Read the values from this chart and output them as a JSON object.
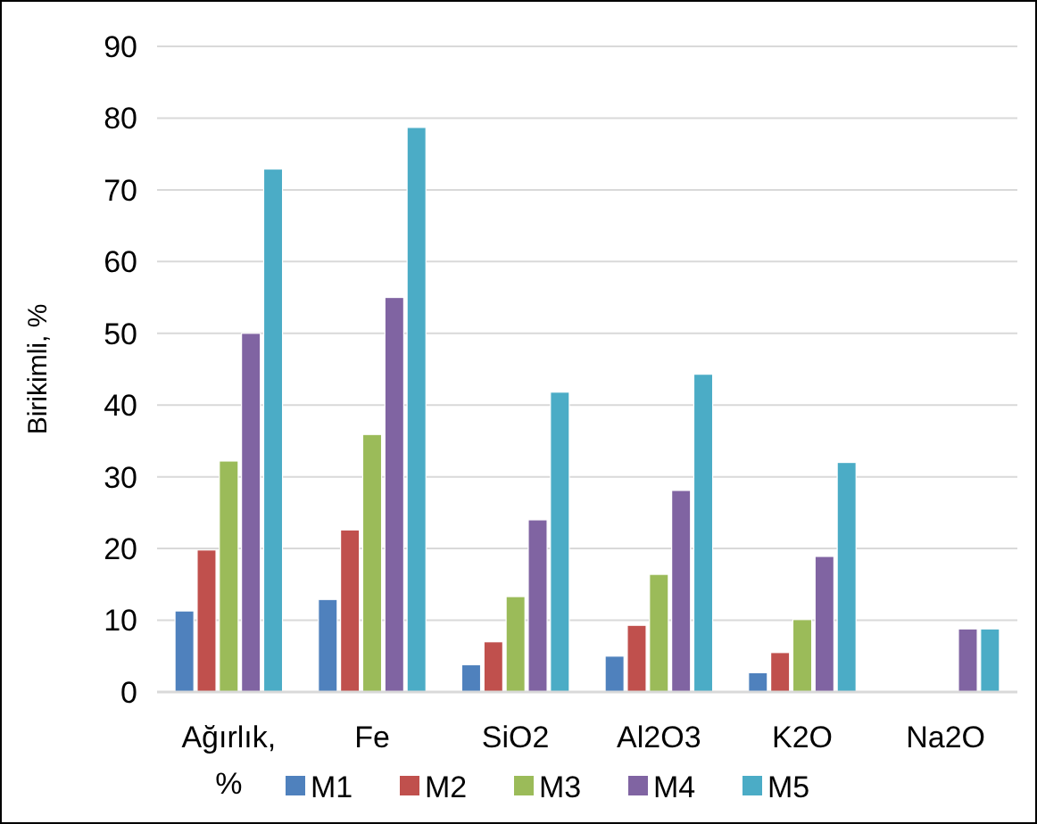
{
  "chart_data": {
    "type": "bar",
    "ylabel": "Birikimli, %",
    "categories": [
      "Ağırlık, %",
      "Fe",
      "SiO2",
      "Al2O3",
      "K2O",
      "Na2O"
    ],
    "series": [
      {
        "name": "M1",
        "color": "#4f81bd",
        "values": [
          11.3,
          12.9,
          3.8,
          5.0,
          2.7,
          0
        ]
      },
      {
        "name": "M2",
        "color": "#c0504d",
        "values": [
          19.8,
          22.6,
          7.0,
          9.3,
          5.5,
          0
        ]
      },
      {
        "name": "M3",
        "color": "#9bbb59",
        "values": [
          32.2,
          35.9,
          13.3,
          16.4,
          10.1,
          0
        ]
      },
      {
        "name": "M4",
        "color": "#8064a2",
        "values": [
          50.0,
          55.0,
          24.0,
          28.1,
          18.9,
          8.8
        ]
      },
      {
        "name": "M5",
        "color": "#4bacc6",
        "values": [
          72.9,
          78.7,
          41.8,
          44.3,
          32.0,
          8.8
        ]
      }
    ],
    "ylim": [
      0,
      90
    ],
    "yticks": [
      0,
      10,
      20,
      30,
      40,
      50,
      60,
      70,
      80,
      90
    ],
    "grid": "y",
    "legend": "bottom"
  }
}
